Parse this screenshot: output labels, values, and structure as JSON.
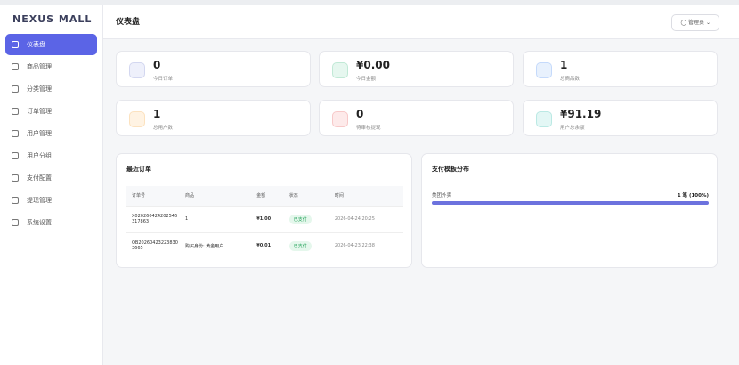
{
  "sidebar": {
    "brand": "NEXUS MALL",
    "items": [
      "仪表盘",
      "商品管理",
      "分类管理",
      "订单管理",
      "用户管理",
      "用户分组",
      "支付配置",
      "提现管理",
      "系统设置"
    ]
  },
  "header": {
    "title": "仪表盘",
    "user": "管理员"
  },
  "stats": [
    {
      "value": "0",
      "label": "今日订单"
    },
    {
      "value": "¥0.00",
      "label": "今日金额"
    },
    {
      "value": "1",
      "label": "总商品数"
    },
    {
      "value": "1",
      "label": "总用户数"
    },
    {
      "value": "0",
      "label": "待审核提现"
    },
    {
      "value": "¥91.19",
      "label": "用户总余额"
    }
  ],
  "recent_orders": {
    "title": "最近订单",
    "columns": [
      "订单号",
      "商品",
      "金额",
      "状态",
      "时间"
    ],
    "rows": [
      [
        "X020260424202546317863",
        "1",
        "¥1.00",
        "已支付",
        "2026-04-24 20:25"
      ],
      [
        "OB202604232238303665",
        "购买身份: 黄金用户",
        "¥0.01",
        "已支付",
        "2026-04-23 22:38"
      ]
    ]
  },
  "payment_distribution": {
    "title": "支付模板分布",
    "items": [
      {
        "name": "美团外卖",
        "value": "1 笔 (100%)"
      }
    ]
  }
}
